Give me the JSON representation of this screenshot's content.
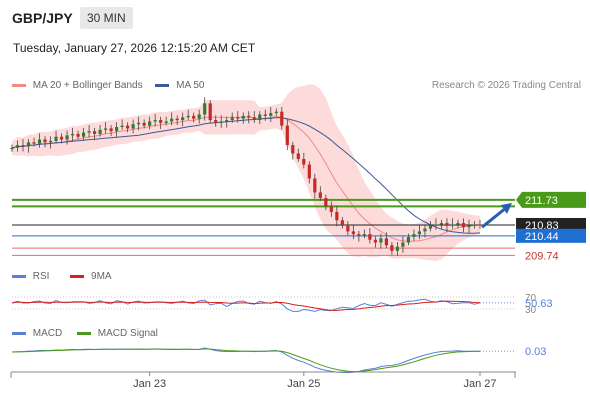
{
  "header": {
    "symbol": "GBP/JPY",
    "timeframe": "30 MIN",
    "datetime": "Tuesday, January 27, 2026 12:15:20 AM CET"
  },
  "legend": {
    "ma20": "MA 20 + Bollinger Bands",
    "ma50": "MA 50",
    "ma20_color": "#f28b82",
    "ma50_color": "#3d5a99",
    "credit": "Research © 2026 Trading Central"
  },
  "rsi_legend": {
    "rsi": "RSI",
    "ma9": "9MA",
    "rsi_color": "#5b7fd6",
    "ma9_color": "#d42020"
  },
  "macd_legend": {
    "macd": "MACD",
    "signal": "MACD Signal",
    "macd_color": "#5b7fd6",
    "signal_color": "#4a9a1a"
  },
  "colors": {
    "pivot_green": "#4a9a1a",
    "support_red": "#e07070",
    "last_price_bg": "#222222",
    "blue_level_bg": "#1f6fd1",
    "arrow_blue": "#2a5fb0"
  },
  "chart_data": [
    {
      "type": "candlestick",
      "title": "GBP/JPY",
      "interval": "30 MIN",
      "x_tick_labels": [
        "Jan 23",
        "Jan 25",
        "Jan 27"
      ],
      "indicators": [
        "MA 20 + Bollinger Bands",
        "MA 50"
      ],
      "price_levels": [
        {
          "value": 211.73,
          "label": "211.73",
          "role": "resistance target",
          "color": "#4a9a1a"
        },
        {
          "value": 211.5,
          "label": "",
          "role": "resistance",
          "color": "#4a9a1a"
        },
        {
          "value": 210.83,
          "label": "210.83",
          "role": "last price",
          "color": "#222222"
        },
        {
          "value": 210.44,
          "label": "210.44",
          "role": "pivot",
          "color": "#1f6fd1"
        },
        {
          "value": 210.0,
          "label": "",
          "role": "support",
          "color": "#e07070"
        },
        {
          "value": 209.74,
          "label": "209.74",
          "role": "support",
          "color": "#e07070"
        }
      ],
      "close_series": [
        213.6,
        213.7,
        213.65,
        213.8,
        213.75,
        213.9,
        213.8,
        213.85,
        214.0,
        213.9,
        214.05,
        214.1,
        214.0,
        214.15,
        214.2,
        214.1,
        214.25,
        214.3,
        214.2,
        214.35,
        214.4,
        214.3,
        214.45,
        214.5,
        214.4,
        214.55,
        214.6,
        214.5,
        214.55,
        214.65,
        214.6,
        214.7,
        214.75,
        214.65,
        214.8,
        215.2,
        214.6,
        214.5,
        214.55,
        214.6,
        214.7,
        214.65,
        214.75,
        214.7,
        214.6,
        214.8,
        214.75,
        214.85,
        214.9,
        214.4,
        213.7,
        213.4,
        213.2,
        213.0,
        212.5,
        212.0,
        211.8,
        211.5,
        211.3,
        211.0,
        210.8,
        210.6,
        210.5,
        210.45,
        210.5,
        210.3,
        210.2,
        210.35,
        210.1,
        209.9,
        210.05,
        210.2,
        210.4,
        210.5,
        210.6,
        210.7,
        210.8,
        210.85,
        210.9,
        210.8,
        210.85,
        210.9,
        210.75,
        210.8,
        210.85,
        210.83
      ],
      "ylim": [
        209.5,
        215.5
      ]
    },
    {
      "type": "line",
      "title": "RSI",
      "series": [
        {
          "name": "RSI",
          "color": "#5b7fd6"
        },
        {
          "name": "9MA",
          "color": "#d42020"
        }
      ],
      "y_tick_labels": [
        "70",
        "30"
      ],
      "last_value_label": "50.63",
      "ylim": [
        0,
        100
      ]
    },
    {
      "type": "line",
      "title": "MACD",
      "series": [
        {
          "name": "MACD",
          "color": "#5b7fd6"
        },
        {
          "name": "MACD Signal",
          "color": "#4a9a1a"
        }
      ],
      "last_value_label": "0.03"
    }
  ]
}
